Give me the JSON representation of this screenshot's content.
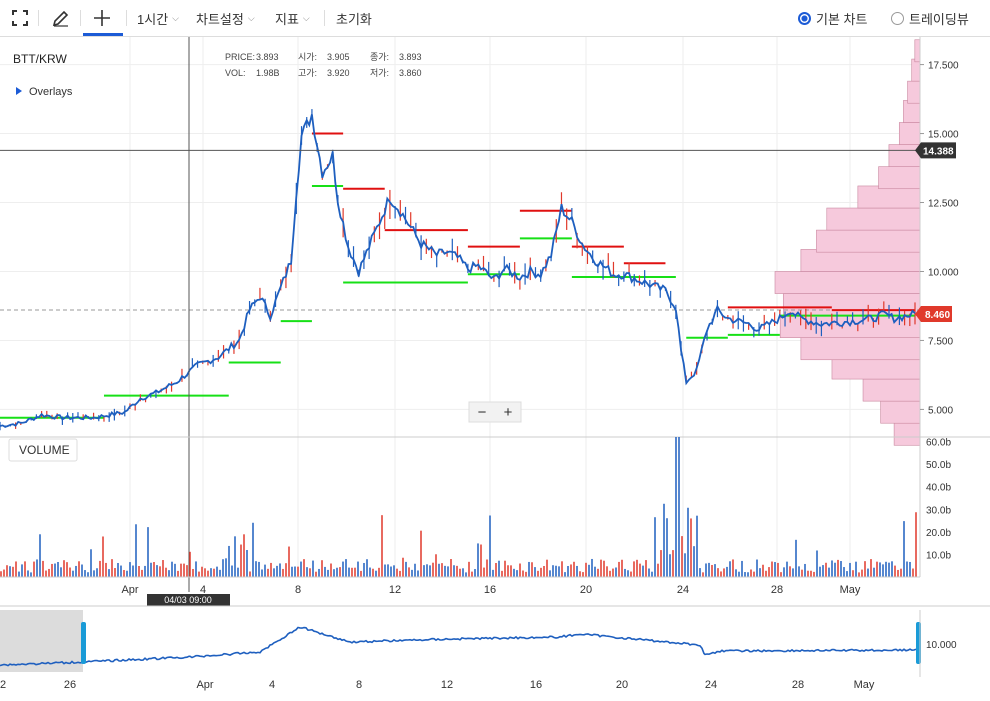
{
  "toolbar": {
    "interval": "1시간",
    "chart_settings": "차트설정",
    "indicators": "지표",
    "reset": "초기화",
    "basic_chart": "기본 차트",
    "tradingview": "트레이딩뷰"
  },
  "chart_data": {
    "type": "candlestick",
    "symbol": "BTT/KRW",
    "overlays_label": "Overlays",
    "info": {
      "price_label": "PRICE:",
      "price": "3.893",
      "open_label": "시가:",
      "open": "3.905",
      "close_label": "종가:",
      "close": "3.893",
      "vol_label": "VOL:",
      "vol": "1.98B",
      "high_label": "고가:",
      "high": "3.920",
      "low_label": "저가:",
      "low": "3.860"
    },
    "price_axis": {
      "min": 4.0,
      "max": 18.5,
      "ticks": [
        "17.500",
        "15.000",
        "12.500",
        "10.000",
        "7.500",
        "5.000"
      ],
      "tick_values": [
        17.5,
        15.0,
        12.5,
        10.0,
        7.5,
        5.0
      ]
    },
    "crosshair_price": "14.388",
    "last_price": "8.460",
    "cursor_time": "04/03 09:00",
    "volume_label": "VOLUME",
    "volume_axis": {
      "ticks": [
        "60.0b",
        "50.0b",
        "40.0b",
        "30.0b",
        "20.0b",
        "10.0b"
      ],
      "tick_values": [
        60,
        50,
        40,
        30,
        20,
        10
      ]
    },
    "x_labels": [
      "Apr",
      "4",
      "8",
      "12",
      "16",
      "20",
      "24",
      "28",
      "May"
    ],
    "nav_x_labels": [
      "2",
      "26",
      "Apr",
      "4",
      "8",
      "12",
      "16",
      "20",
      "24",
      "28",
      "May"
    ],
    "nav_price_tick": "10.000",
    "zoom_out": "−",
    "zoom_in": "+",
    "price_series": [
      [
        0,
        4.4
      ],
      [
        4,
        4.5
      ],
      [
        8,
        4.8
      ],
      [
        12,
        4.7
      ],
      [
        18,
        4.7
      ],
      [
        24,
        4.9
      ],
      [
        27,
        5.4
      ],
      [
        30,
        5.6
      ],
      [
        34,
        6.0
      ],
      [
        38,
        6.6
      ],
      [
        42,
        6.9
      ],
      [
        46,
        7.5
      ],
      [
        48,
        8.6
      ],
      [
        50,
        9.1
      ],
      [
        52,
        8.4
      ],
      [
        54,
        9.4
      ],
      [
        56,
        10.4
      ],
      [
        57,
        12.9
      ],
      [
        58,
        14.9
      ],
      [
        60,
        15.7
      ],
      [
        62,
        13.6
      ],
      [
        64,
        14.2
      ],
      [
        65,
        12.6
      ],
      [
        67,
        10.9
      ],
      [
        69,
        10.0
      ],
      [
        71,
        10.9
      ],
      [
        73,
        11.8
      ],
      [
        75,
        12.7
      ],
      [
        77,
        12.2
      ],
      [
        79,
        11.6
      ],
      [
        81,
        11.0
      ],
      [
        84,
        10.6
      ],
      [
        86,
        10.7
      ],
      [
        88,
        10.5
      ],
      [
        90,
        10.1
      ],
      [
        92,
        10.2
      ],
      [
        95,
        9.7
      ],
      [
        97,
        10.1
      ],
      [
        100,
        9.8
      ],
      [
        102,
        10.0
      ],
      [
        104,
        9.9
      ],
      [
        106,
        10.6
      ],
      [
        108,
        12.3
      ],
      [
        110,
        11.8
      ],
      [
        112,
        11.0
      ],
      [
        114,
        10.5
      ],
      [
        116,
        10.2
      ],
      [
        118,
        9.9
      ],
      [
        120,
        9.9
      ],
      [
        124,
        9.6
      ],
      [
        128,
        9.3
      ],
      [
        130,
        8.7
      ],
      [
        131,
        7.1
      ],
      [
        132,
        6.0
      ],
      [
        134,
        6.4
      ],
      [
        136,
        7.9
      ],
      [
        138,
        8.6
      ],
      [
        140,
        8.3
      ],
      [
        144,
        8.1
      ],
      [
        146,
        7.9
      ],
      [
        148,
        8.1
      ],
      [
        150,
        8.3
      ],
      [
        152,
        8.6
      ],
      [
        154,
        8.3
      ],
      [
        158,
        8.1
      ],
      [
        164,
        8.2
      ],
      [
        168,
        8.3
      ],
      [
        170,
        8.45
      ],
      [
        172,
        8.3
      ],
      [
        176,
        8.46
      ]
    ],
    "volume_profile": [
      [
        4.5,
        2.5
      ],
      [
        5.3,
        3.8
      ],
      [
        6.1,
        5.5
      ],
      [
        6.9,
        8.5
      ],
      [
        7.6,
        11.5
      ],
      [
        8.4,
        13.5
      ],
      [
        9.2,
        13.2
      ],
      [
        10.0,
        14.0
      ],
      [
        10.8,
        11.5
      ],
      [
        11.5,
        10.0
      ],
      [
        12.3,
        9.0
      ],
      [
        13.1,
        6.0
      ],
      [
        13.8,
        4.0
      ],
      [
        14.6,
        3.0
      ],
      [
        15.4,
        2.0
      ],
      [
        16.2,
        1.6
      ],
      [
        16.9,
        1.2
      ],
      [
        17.7,
        0.8
      ],
      [
        18.4,
        0.5
      ]
    ],
    "colors": {
      "up": "#e0392b",
      "down": "#1e5fbf",
      "support": "#17e017",
      "resistance": "#e01010",
      "profile": "#f6c9dc"
    }
  }
}
